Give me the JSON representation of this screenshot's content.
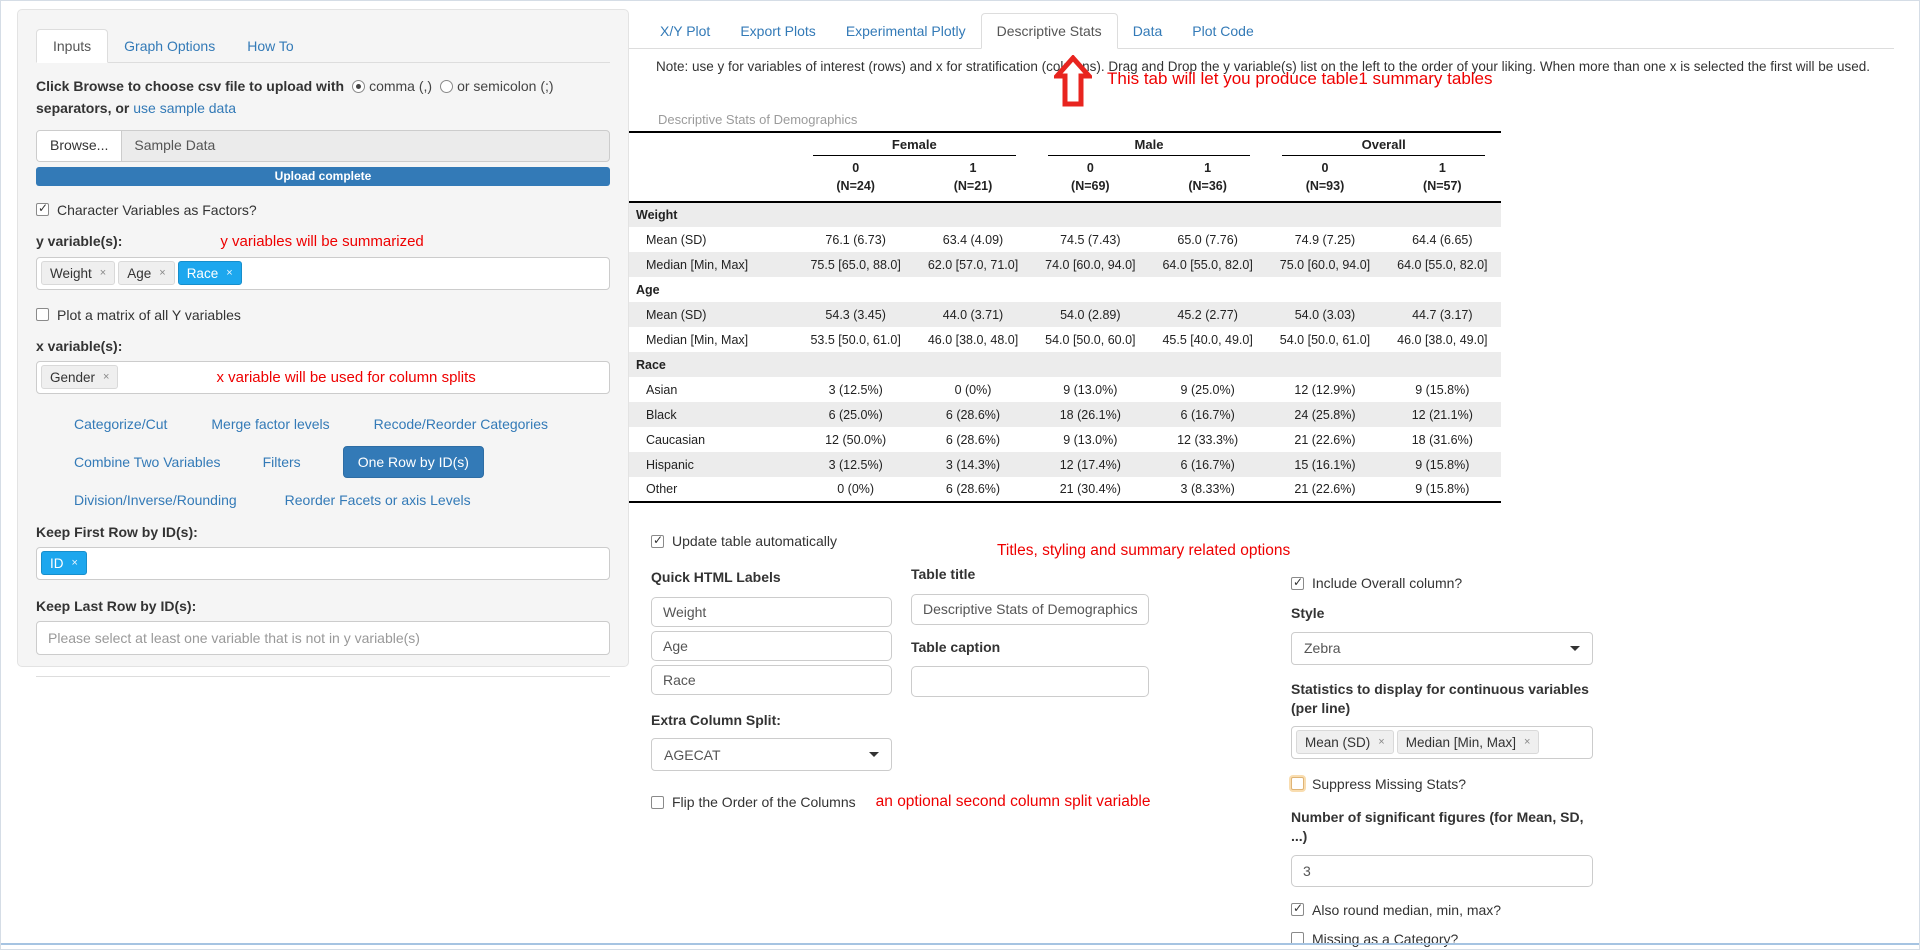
{
  "colors": {
    "accent_blue": "#337ab7",
    "chip_active_blue": "#1da7ee",
    "annotation_red": "#ee0000",
    "zebra_gray": "#ececec"
  },
  "sidebar": {
    "tabs": [
      {
        "label": "Inputs"
      },
      {
        "label": "Graph Options"
      },
      {
        "label": "How To"
      }
    ],
    "upload": {
      "instruction": "Click Browse to choose csv file to upload with",
      "comma_option": "comma (,)",
      "semicolon_option": "or semicolon (;)",
      "separators_text": "separators, or",
      "sample_link": "use sample data",
      "browse_button": "Browse...",
      "file_name": "Sample Data",
      "progress_text": "Upload complete"
    },
    "char_factors_label": "Character Variables as Factors?",
    "char_factors_checked": true,
    "y_section": {
      "label": "y variable(s):",
      "annotation": "y variables will be summarized",
      "chips": [
        {
          "label": "Weight"
        },
        {
          "label": "Age"
        },
        {
          "label": "Race"
        }
      ]
    },
    "plot_matrix_label": "Plot a matrix of all Y variables",
    "plot_matrix_checked": false,
    "x_section": {
      "label": "x variable(s):",
      "annotation": "x variable will be used for column splits",
      "chips": [
        {
          "label": "Gender"
        }
      ]
    },
    "tools": {
      "row1": [
        "Categorize/Cut",
        "Merge factor levels",
        "Recode/Reorder Categories"
      ],
      "row2": [
        "Combine Two Variables",
        "Filters"
      ],
      "active_button": "One Row by ID(s)",
      "row3": [
        "Division/Inverse/Rounding",
        "Reorder Facets or axis Levels"
      ]
    },
    "keep_first": {
      "label": "Keep First Row by ID(s):",
      "chips": [
        {
          "label": "ID"
        }
      ]
    },
    "keep_last": {
      "label": "Keep Last Row by ID(s):",
      "placeholder": "Please select at least one variable that is not in y variable(s)"
    }
  },
  "main": {
    "tabs": [
      {
        "label": "X/Y Plot"
      },
      {
        "label": "Export Plots"
      },
      {
        "label": "Experimental Plotly"
      },
      {
        "label": "Descriptive Stats"
      },
      {
        "label": "Data"
      },
      {
        "label": "Plot Code"
      }
    ],
    "note": "Note: use y for variables of interest (rows) and x for stratification (columns). Drag and Drop the y variable(s) list on the left to the order of your liking. When more than one x is selected the first will be used.",
    "annotation": "This tab will let you produce table1 summary tables"
  },
  "table": {
    "title": "Descriptive Stats of Demographics",
    "groups": [
      {
        "label": "Female",
        "columns": [
          {
            "level": "0",
            "n": "(N=24)"
          },
          {
            "level": "1",
            "n": "(N=21)"
          }
        ]
      },
      {
        "label": "Male",
        "columns": [
          {
            "level": "0",
            "n": "(N=69)"
          },
          {
            "level": "1",
            "n": "(N=36)"
          }
        ]
      },
      {
        "label": "Overall",
        "columns": [
          {
            "level": "0",
            "n": "(N=93)"
          },
          {
            "level": "1",
            "n": "(N=57)"
          }
        ]
      }
    ],
    "sections": [
      {
        "name": "Weight",
        "rows": [
          {
            "label": "Mean (SD)",
            "values": [
              "76.1 (6.73)",
              "63.4 (4.09)",
              "74.5 (7.43)",
              "65.0 (7.76)",
              "74.9 (7.25)",
              "64.4 (6.65)"
            ]
          },
          {
            "label": "Median [Min, Max]",
            "values": [
              "75.5 [65.0, 88.0]",
              "62.0 [57.0, 71.0]",
              "74.0 [60.0, 94.0]",
              "64.0 [55.0, 82.0]",
              "75.0 [60.0, 94.0]",
              "64.0 [55.0, 82.0]"
            ]
          }
        ]
      },
      {
        "name": "Age",
        "rows": [
          {
            "label": "Mean (SD)",
            "values": [
              "54.3 (3.45)",
              "44.0 (3.71)",
              "54.0 (2.89)",
              "45.2 (2.77)",
              "54.0 (3.03)",
              "44.7 (3.17)"
            ]
          },
          {
            "label": "Median [Min, Max]",
            "values": [
              "53.5 [50.0, 61.0]",
              "46.0 [38.0, 48.0]",
              "54.0 [50.0, 60.0]",
              "45.5 [40.0, 49.0]",
              "54.0 [50.0, 61.0]",
              "46.0 [38.0, 49.0]"
            ]
          }
        ]
      },
      {
        "name": "Race",
        "rows": [
          {
            "label": "Asian",
            "values": [
              "3 (12.5%)",
              "0 (0%)",
              "9 (13.0%)",
              "9 (25.0%)",
              "12 (12.9%)",
              "9 (15.8%)"
            ]
          },
          {
            "label": "Black",
            "values": [
              "6 (25.0%)",
              "6 (28.6%)",
              "18 (26.1%)",
              "6 (16.7%)",
              "24 (25.8%)",
              "12 (21.1%)"
            ]
          },
          {
            "label": "Caucasian",
            "values": [
              "12 (50.0%)",
              "6 (28.6%)",
              "9 (13.0%)",
              "12 (33.3%)",
              "21 (22.6%)",
              "18 (31.6%)"
            ]
          },
          {
            "label": "Hispanic",
            "values": [
              "3 (12.5%)",
              "3 (14.3%)",
              "12 (17.4%)",
              "6 (16.7%)",
              "15 (16.1%)",
              "9 (15.8%)"
            ]
          },
          {
            "label": "Other",
            "values": [
              "0 (0%)",
              "6 (28.6%)",
              "21 (30.4%)",
              "3 (8.33%)",
              "21 (22.6%)",
              "9 (15.8%)"
            ]
          }
        ]
      }
    ]
  },
  "controls": {
    "update_auto_label": "Update table automatically",
    "update_auto_checked": true,
    "quick_labels_heading": "Quick HTML Labels",
    "quick_labels": [
      "Weight",
      "Age",
      "Race"
    ],
    "extra_split_label": "Extra Column Split:",
    "extra_split_value": "AGECAT",
    "flip_label": "Flip the Order of the Columns",
    "flip_checked": false,
    "flip_annotation": "an optional second column split variable",
    "titles_annotation": "Titles, styling and summary related options",
    "table_title_label": "Table title",
    "table_title_value": "Descriptive Stats of Demographics",
    "table_caption_label": "Table caption",
    "table_caption_value": "",
    "include_overall_label": "Include Overall column?",
    "include_overall_checked": true,
    "style_label": "Style",
    "style_value": "Zebra",
    "stats_label": "Statistics to display for continuous variables (per line)",
    "stats_chips": [
      {
        "label": "Mean (SD)"
      },
      {
        "label": "Median [Min, Max]"
      }
    ],
    "suppress_label": "Suppress Missing Stats?",
    "suppress_checked": false,
    "sigfig_label": "Number of significant figures (for Mean, SD, ...)",
    "sigfig_value": "3",
    "round_label": "Also round median, min, max?",
    "round_checked": true,
    "missing_label": "Missing as a Category?",
    "missing_checked": false
  }
}
